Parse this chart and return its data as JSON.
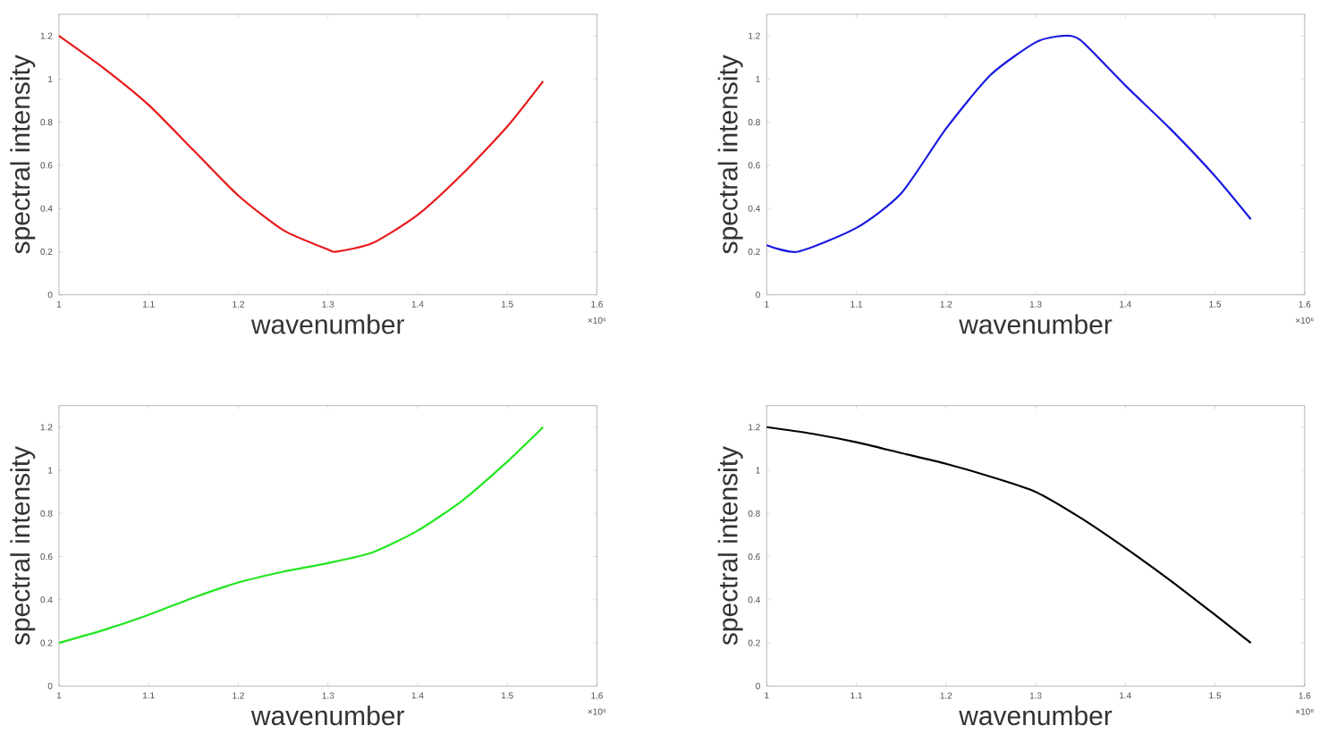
{
  "chart_data": [
    {
      "type": "line",
      "xlabel": "wavenumber",
      "ylabel": "spectral intensity",
      "color": "#e8191b",
      "x": [
        1,
        1.05,
        1.1,
        1.15,
        1.2,
        1.25,
        1.3,
        1.31,
        1.35,
        1.4,
        1.45,
        1.5,
        1.54
      ],
      "values": [
        1.2,
        1.05,
        0.88,
        0.67,
        0.46,
        0.3,
        0.21,
        0.2,
        0.24,
        0.37,
        0.56,
        0.78,
        0.99
      ],
      "xlim": [
        1,
        1.6
      ],
      "ylim": [
        0,
        1.3
      ],
      "xticks": [
        1,
        1.1,
        1.2,
        1.3,
        1.4,
        1.5,
        1.6
      ],
      "yticks": [
        0,
        0.2,
        0.4,
        0.6,
        0.8,
        1,
        1.2
      ],
      "annotations": [
        "×10⁶"
      ]
    },
    {
      "type": "line",
      "xlabel": "wavenumber",
      "ylabel": "spectral intensity",
      "color": "#1a1ae0",
      "x": [
        1,
        1.035,
        1.1,
        1.15,
        1.2,
        1.25,
        1.3,
        1.33,
        1.35,
        1.4,
        1.45,
        1.5,
        1.54
      ],
      "values": [
        0.23,
        0.2,
        0.31,
        0.47,
        0.77,
        1.02,
        1.17,
        1.2,
        1.18,
        0.97,
        0.77,
        0.55,
        0.35
      ],
      "xlim": [
        1,
        1.6
      ],
      "ylim": [
        0,
        1.3
      ],
      "xticks": [
        1,
        1.1,
        1.2,
        1.3,
        1.4,
        1.5,
        1.6
      ],
      "yticks": [
        0,
        0.2,
        0.4,
        0.6,
        0.8,
        1,
        1.2
      ],
      "annotations": [
        "×10⁶"
      ]
    },
    {
      "type": "line",
      "xlabel": "wavenumber",
      "ylabel": "spectral intensity",
      "color": "#22e61f",
      "x": [
        1,
        1.05,
        1.1,
        1.15,
        1.2,
        1.25,
        1.3,
        1.35,
        1.4,
        1.45,
        1.5,
        1.54
      ],
      "values": [
        0.2,
        0.26,
        0.33,
        0.41,
        0.48,
        0.53,
        0.57,
        0.62,
        0.72,
        0.86,
        1.04,
        1.2
      ],
      "xlim": [
        1,
        1.6
      ],
      "ylim": [
        0,
        1.3
      ],
      "xticks": [
        1,
        1.1,
        1.2,
        1.3,
        1.4,
        1.5,
        1.6
      ],
      "yticks": [
        0,
        0.2,
        0.4,
        0.6,
        0.8,
        1,
        1.2
      ],
      "annotations": [
        "×10⁶"
      ]
    },
    {
      "type": "line",
      "xlabel": "wavenumber",
      "ylabel": "spectral intensity",
      "color": "#000000",
      "x": [
        1,
        1.05,
        1.1,
        1.15,
        1.2,
        1.25,
        1.3,
        1.35,
        1.4,
        1.45,
        1.5,
        1.54
      ],
      "values": [
        1.2,
        1.17,
        1.13,
        1.08,
        1.03,
        0.97,
        0.9,
        0.78,
        0.64,
        0.49,
        0.33,
        0.2
      ],
      "xlim": [
        1,
        1.6
      ],
      "ylim": [
        0,
        1.3
      ],
      "xticks": [
        1,
        1.1,
        1.2,
        1.3,
        1.4,
        1.5,
        1.6
      ],
      "yticks": [
        0,
        0.2,
        0.4,
        0.6,
        0.8,
        1,
        1.2
      ],
      "annotations": [
        "×10⁶"
      ]
    }
  ]
}
